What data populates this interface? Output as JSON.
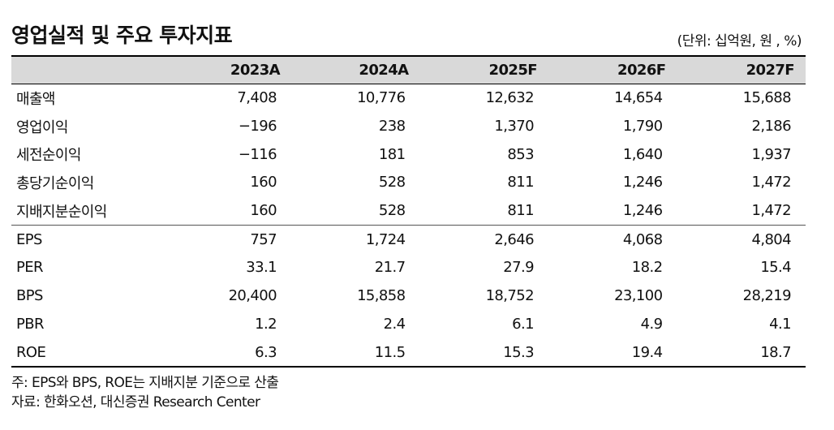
{
  "title": "영업실적 및 주요 투자지표",
  "unit_note": "(단위: 십억원, 원 , %)",
  "table": {
    "columns": [
      "2023A",
      "2024A",
      "2025F",
      "2026F",
      "2027F"
    ],
    "group1": [
      {
        "label": "매출액",
        "values": [
          "7,408",
          "10,776",
          "12,632",
          "14,654",
          "15,688"
        ]
      },
      {
        "label": "영업이익",
        "values": [
          "−196",
          "238",
          "1,370",
          "1,790",
          "2,186"
        ]
      },
      {
        "label": "세전순이익",
        "values": [
          "−116",
          "181",
          "853",
          "1,640",
          "1,937"
        ]
      },
      {
        "label": "총당기순이익",
        "values": [
          "160",
          "528",
          "811",
          "1,246",
          "1,472"
        ]
      },
      {
        "label": "지배지분순이익",
        "values": [
          "160",
          "528",
          "811",
          "1,246",
          "1,472"
        ]
      }
    ],
    "group2": [
      {
        "label": "EPS",
        "values": [
          "757",
          "1,724",
          "2,646",
          "4,068",
          "4,804"
        ]
      },
      {
        "label": "PER",
        "values": [
          "33.1",
          "21.7",
          "27.9",
          "18.2",
          "15.4"
        ]
      },
      {
        "label": "BPS",
        "values": [
          "20,400",
          "15,858",
          "18,752",
          "23,100",
          "28,219"
        ]
      },
      {
        "label": "PBR",
        "values": [
          "1.2",
          "2.4",
          "6.1",
          "4.9",
          "4.1"
        ]
      },
      {
        "label": "ROE",
        "values": [
          "6.3",
          "11.5",
          "15.3",
          "19.4",
          "18.7"
        ]
      }
    ]
  },
  "notes": {
    "note": "주: EPS와 BPS, ROE는 지배지분 기준으로 산출",
    "source": "자료: 한화오션, 대신증권 Research Center"
  }
}
